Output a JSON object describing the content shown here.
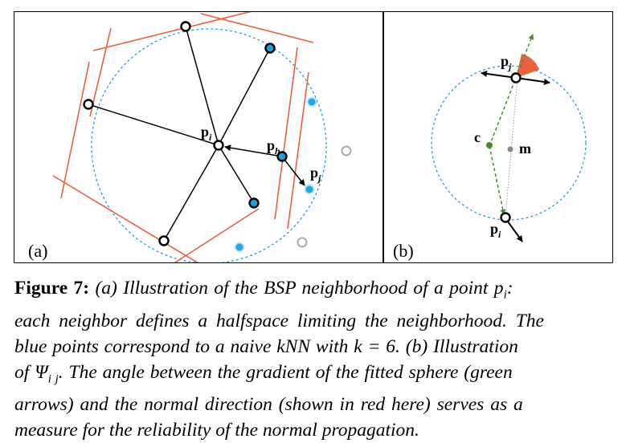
{
  "panel_a": {
    "tag": "(a)",
    "labels": {
      "pi": "p",
      "pi_sub": "i",
      "ph": "p",
      "ph_sub": "h",
      "pj": "p",
      "pj_sub": "j"
    },
    "colors": {
      "halfspace": "#e8623f",
      "circle": "#1ba3e0",
      "neighbor_fill": "#1a9fdf",
      "knn_fill": "#21a6e6",
      "kept_ring": "#000000",
      "missing_ring": "#999999"
    }
  },
  "panel_b": {
    "tag": "(b)",
    "labels": {
      "pj": "p",
      "pj_sub": "j",
      "c": "c",
      "m": "m",
      "pi": "p",
      "pi_sub": "i"
    },
    "colors": {
      "gradient": "#4d8a2a",
      "normal_angle": "#e8623f",
      "circle": "#1ba3e0",
      "center_m": "#888888"
    }
  },
  "caption": {
    "label": "Figure 7:",
    "lines": [
      "(a) Illustration of the BSP neighborhood of a point p",
      "each neighbor defines a halfspace limiting the neighborhood. The",
      "blue points correspond to a naive kNN with k = 6.  (b) Illustration",
      "of Ψ",
      "arrows) and the normal direction (shown in red here) serves as a",
      "measure for the reliability of the normal propagation."
    ],
    "line1_sub": "i",
    "line1_end": ":",
    "line4_sub": "i j",
    "line4_rest": ". The angle between the gradient of the fitted sphere (green"
  }
}
